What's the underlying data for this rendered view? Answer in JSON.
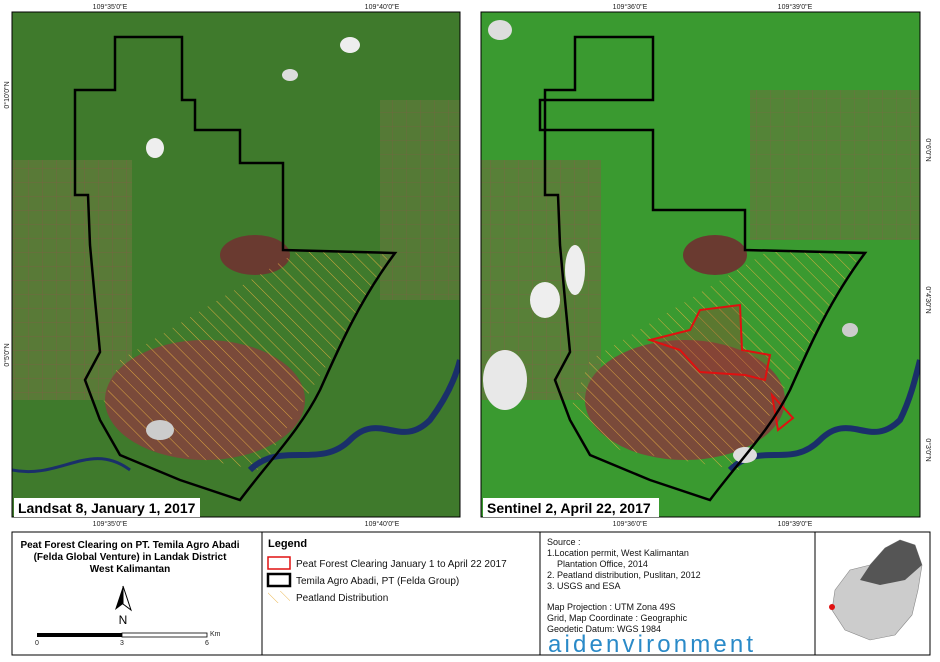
{
  "left_map": {
    "caption": "Landsat 8, January 1, 2017",
    "top_labels": [
      "109°35'0\"E",
      "109°40'0\"E"
    ],
    "bottom_labels": [
      "109°35'0\"E",
      "109°40'0\"E"
    ],
    "side_labels": [
      "0°10'0\"N",
      "0°5'0\"N"
    ]
  },
  "right_map": {
    "caption": "Sentinel 2, April 22, 2017",
    "top_labels": [
      "109°36'0\"E",
      "109°39'0\"E"
    ],
    "bottom_labels": [
      "109°36'0\"E",
      "109°39'0\"E"
    ],
    "side_labels": [
      "0°6'0\"N",
      "0°4'30\"N",
      "0°3'0\"N"
    ]
  },
  "title": {
    "lines": [
      "Peat Forest Clearing on PT. Temila Agro Abadi",
      "(Felda Global Venture) in Landak District",
      "West Kalimantan"
    ]
  },
  "north": "N",
  "scale": {
    "labels": [
      "0",
      "3",
      "6"
    ],
    "unit": "Km"
  },
  "legend": {
    "title": "Legend",
    "items": [
      "Peat Forest Clearing January 1 to April 22 2017",
      "Temila Agro Abadi, PT (Felda Group)",
      "Peatland Distribution"
    ]
  },
  "source": {
    "lines": [
      "Source :",
      "1.Location permit, West Kalimantan",
      "Plantation Office, 2014",
      "2. Peatland distribution, Puslitan, 2012",
      "3. USGS and ESA",
      "Map Projection : UTM Zona 49S",
      "Grid, Map Coordinate : Geographic",
      "Geodetic Datum: WGS 1984"
    ]
  },
  "logo": "aidenvironment"
}
